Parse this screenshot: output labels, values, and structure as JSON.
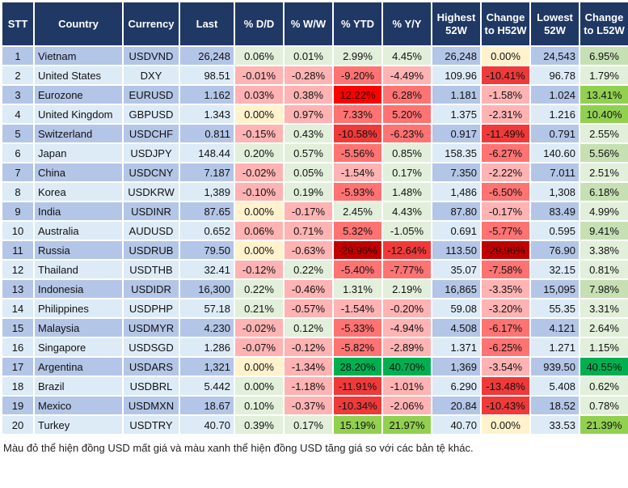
{
  "colors": {
    "header": "#203864",
    "row_odd": "#b4c6e7",
    "row_even": "#ddebf7",
    "g": "#e2efda",
    "G": "#c6e0b4",
    "GG": "#92d050",
    "DG": "#00b050",
    "y": "#fff2cc",
    "p": "#ffb3b3",
    "r": "#ff7373",
    "R": "#f03a3a",
    "RR": "#ff0000",
    "DR": "#c00000"
  },
  "headers": [
    "STT",
    "Country",
    "Currency",
    "Last",
    "% D/D",
    "% W/W",
    "% YTD",
    "% Y/Y",
    "Highest 52W",
    "Change to H52W",
    "Lowest 52W",
    "Change to L52W"
  ],
  "rows": [
    {
      "stt": "1",
      "country": "Vietnam",
      "currency": "USDVND",
      "last": "26,248",
      "dd": "0.06%",
      "ww": "0.01%",
      "ytd": "2.99%",
      "yy": "4.45%",
      "high": "26,248",
      "ch": "0.00%",
      "low": "24,543",
      "cl": "6.95%",
      "colors": [
        "g",
        "g",
        "g",
        "g",
        "y",
        "G"
      ]
    },
    {
      "stt": "2",
      "country": "United States",
      "currency": "DXY",
      "last": "98.51",
      "dd": "-0.01%",
      "ww": "-0.28%",
      "ytd": "-9.20%",
      "yy": "-4.49%",
      "high": "109.96",
      "ch": "-10.41%",
      "low": "96.78",
      "cl": "1.79%",
      "colors": [
        "p",
        "p",
        "r",
        "p",
        "R",
        "g"
      ]
    },
    {
      "stt": "3",
      "country": "Eurozone",
      "currency": "EURUSD",
      "last": "1.162",
      "dd": "0.03%",
      "ww": "0.38%",
      "ytd": "12.22%",
      "yy": "6.28%",
      "high": "1.181",
      "ch": "-1.58%",
      "low": "1.024",
      "cl": "13.41%",
      "colors": [
        "p",
        "p",
        "RR",
        "r",
        "p",
        "GG"
      ]
    },
    {
      "stt": "4",
      "country": "United Kingdom",
      "currency": "GBPUSD",
      "last": "1.343",
      "dd": "0.00%",
      "ww": "0.97%",
      "ytd": "7.33%",
      "yy": "5.20%",
      "high": "1.375",
      "ch": "-2.31%",
      "low": "1.216",
      "cl": "10.40%",
      "colors": [
        "y",
        "p",
        "r",
        "r",
        "p",
        "GG"
      ]
    },
    {
      "stt": "5",
      "country": "Switzerland",
      "currency": "USDCHF",
      "last": "0.811",
      "dd": "-0.15%",
      "ww": "0.43%",
      "ytd": "-10.58%",
      "yy": "-6.23%",
      "high": "0.917",
      "ch": "-11.49%",
      "low": "0.791",
      "cl": "2.55%",
      "colors": [
        "p",
        "g",
        "R",
        "r",
        "R",
        "g"
      ]
    },
    {
      "stt": "6",
      "country": "Japan",
      "currency": "USDJPY",
      "last": "148.44",
      "dd": "0.20%",
      "ww": "0.57%",
      "ytd": "-5.56%",
      "yy": "0.85%",
      "high": "158.35",
      "ch": "-6.27%",
      "low": "140.60",
      "cl": "5.56%",
      "colors": [
        "g",
        "g",
        "r",
        "g",
        "r",
        "G"
      ]
    },
    {
      "stt": "7",
      "country": "China",
      "currency": "USDCNY",
      "last": "7.187",
      "dd": "-0.02%",
      "ww": "0.05%",
      "ytd": "-1.54%",
      "yy": "0.17%",
      "high": "7.350",
      "ch": "-2.22%",
      "low": "7.011",
      "cl": "2.51%",
      "colors": [
        "p",
        "g",
        "p",
        "g",
        "p",
        "g"
      ]
    },
    {
      "stt": "8",
      "country": "Korea",
      "currency": "USDKRW",
      "last": "1,389",
      "dd": "-0.10%",
      "ww": "0.19%",
      "ytd": "-5.93%",
      "yy": "1.48%",
      "high": "1,486",
      "ch": "-6.50%",
      "low": "1,308",
      "cl": "6.18%",
      "colors": [
        "p",
        "g",
        "r",
        "g",
        "r",
        "G"
      ]
    },
    {
      "stt": "9",
      "country": "India",
      "currency": "USDINR",
      "last": "87.65",
      "dd": "0.00%",
      "ww": "-0.17%",
      "ytd": "2.45%",
      "yy": "4.43%",
      "high": "87.80",
      "ch": "-0.17%",
      "low": "83.49",
      "cl": "4.99%",
      "colors": [
        "y",
        "p",
        "g",
        "g",
        "p",
        "g"
      ]
    },
    {
      "stt": "10",
      "country": "Australia",
      "currency": "AUDUSD",
      "last": "0.652",
      "dd": "0.06%",
      "ww": "0.71%",
      "ytd": "5.32%",
      "yy": "-1.05%",
      "high": "0.691",
      "ch": "-5.77%",
      "low": "0.595",
      "cl": "9.41%",
      "colors": [
        "p",
        "p",
        "r",
        "g",
        "r",
        "G"
      ]
    },
    {
      "stt": "11",
      "country": "Russia",
      "currency": "USDRUB",
      "last": "79.50",
      "dd": "0.00%",
      "ww": "-0.63%",
      "ytd": "-29.96%",
      "yy": "-12.64%",
      "high": "113.50",
      "ch": "-29.96%",
      "low": "76.90",
      "cl": "3.38%",
      "colors": [
        "y",
        "p",
        "DR",
        "R",
        "DR",
        "g"
      ]
    },
    {
      "stt": "12",
      "country": "Thailand",
      "currency": "USDTHB",
      "last": "32.41",
      "dd": "-0.12%",
      "ww": "0.22%",
      "ytd": "-5.40%",
      "yy": "-7.77%",
      "high": "35.07",
      "ch": "-7.58%",
      "low": "32.15",
      "cl": "0.81%",
      "colors": [
        "p",
        "g",
        "r",
        "r",
        "r",
        "g"
      ]
    },
    {
      "stt": "13",
      "country": "Indonesia",
      "currency": "USDIDR",
      "last": "16,300",
      "dd": "0.22%",
      "ww": "-0.46%",
      "ytd": "1.31%",
      "yy": "2.19%",
      "high": "16,865",
      "ch": "-3.35%",
      "low": "15,095",
      "cl": "7.98%",
      "colors": [
        "g",
        "p",
        "g",
        "g",
        "p",
        "G"
      ]
    },
    {
      "stt": "14",
      "country": "Philippines",
      "currency": "USDPHP",
      "last": "57.18",
      "dd": "0.21%",
      "ww": "-0.57%",
      "ytd": "-1.54%",
      "yy": "-0.20%",
      "high": "59.08",
      "ch": "-3.20%",
      "low": "55.35",
      "cl": "3.31%",
      "colors": [
        "g",
        "p",
        "p",
        "p",
        "p",
        "g"
      ]
    },
    {
      "stt": "15",
      "country": "Malaysia",
      "currency": "USDMYR",
      "last": "4.230",
      "dd": "-0.02%",
      "ww": "0.12%",
      "ytd": "-5.33%",
      "yy": "-4.94%",
      "high": "4.508",
      "ch": "-6.17%",
      "low": "4.121",
      "cl": "2.64%",
      "colors": [
        "p",
        "g",
        "r",
        "p",
        "r",
        "g"
      ]
    },
    {
      "stt": "16",
      "country": "Singapore",
      "currency": "USDSGD",
      "last": "1.286",
      "dd": "-0.07%",
      "ww": "-0.12%",
      "ytd": "-5.82%",
      "yy": "-2.89%",
      "high": "1.371",
      "ch": "-6.25%",
      "low": "1.271",
      "cl": "1.15%",
      "colors": [
        "p",
        "p",
        "r",
        "p",
        "r",
        "g"
      ]
    },
    {
      "stt": "17",
      "country": "Argentina",
      "currency": "USDARS",
      "last": "1,321",
      "dd": "0.00%",
      "ww": "-1.34%",
      "ytd": "28.20%",
      "yy": "40.70%",
      "high": "1,369",
      "ch": "-3.54%",
      "low": "939.50",
      "cl": "40.55%",
      "colors": [
        "y",
        "p",
        "DG",
        "DG",
        "p",
        "DG"
      ]
    },
    {
      "stt": "18",
      "country": "Brazil",
      "currency": "USDBRL",
      "last": "5.442",
      "dd": "0.00%",
      "ww": "-1.18%",
      "ytd": "-11.91%",
      "yy": "-1.01%",
      "high": "6.290",
      "ch": "-13.48%",
      "low": "5.408",
      "cl": "0.62%",
      "colors": [
        "g",
        "p",
        "R",
        "p",
        "R",
        "g"
      ]
    },
    {
      "stt": "19",
      "country": "Mexico",
      "currency": "USDMXN",
      "last": "18.67",
      "dd": "0.10%",
      "ww": "-0.37%",
      "ytd": "-10.34%",
      "yy": "-2.06%",
      "high": "20.84",
      "ch": "-10.43%",
      "low": "18.52",
      "cl": "0.78%",
      "colors": [
        "g",
        "p",
        "R",
        "p",
        "R",
        "g"
      ]
    },
    {
      "stt": "20",
      "country": "Turkey",
      "currency": "USDTRY",
      "last": "40.70",
      "dd": "0.39%",
      "ww": "0.17%",
      "ytd": "15.19%",
      "yy": "21.97%",
      "high": "40.70",
      "ch": "0.00%",
      "low": "33.53",
      "cl": "21.39%",
      "colors": [
        "g",
        "g",
        "GG",
        "GG",
        "y",
        "GG"
      ]
    }
  ],
  "footer": "Màu đỏ thể hiện đồng USD mất giá và màu xanh thể hiện đồng USD tăng giá so với các bản tệ khác."
}
